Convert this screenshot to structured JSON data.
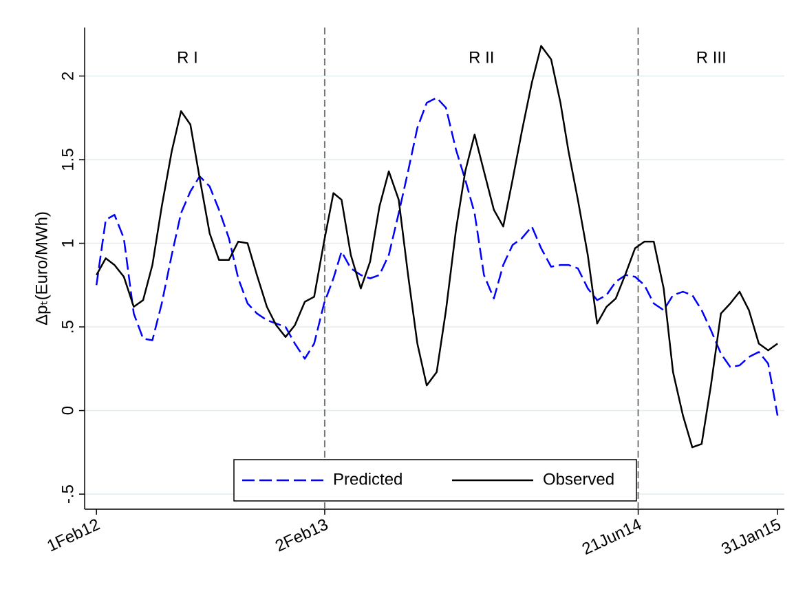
{
  "chart_data": {
    "type": "line",
    "ylabel": "Δpₜ(Euro/MWh)",
    "x": [
      "2012-02-01",
      "2012-02-16",
      "2012-03-01",
      "2012-03-16",
      "2012-04-01",
      "2012-04-16",
      "2012-05-01",
      "2012-05-16",
      "2012-06-01",
      "2012-06-16",
      "2012-07-01",
      "2012-07-16",
      "2012-08-01",
      "2012-08-16",
      "2012-09-01",
      "2012-09-16",
      "2012-10-01",
      "2012-10-16",
      "2012-11-01",
      "2012-11-16",
      "2012-12-01",
      "2012-12-16",
      "2013-01-01",
      "2013-01-16",
      "2013-02-01",
      "2013-02-16",
      "2013-03-01",
      "2013-03-16",
      "2013-04-01",
      "2013-04-16",
      "2013-05-01",
      "2013-05-16",
      "2013-06-01",
      "2013-06-16",
      "2013-07-01",
      "2013-07-16",
      "2013-08-01",
      "2013-08-16",
      "2013-09-01",
      "2013-09-16",
      "2013-10-01",
      "2013-10-16",
      "2013-11-01",
      "2013-11-16",
      "2013-12-01",
      "2013-12-16",
      "2014-01-01",
      "2014-01-16",
      "2014-02-01",
      "2014-02-16",
      "2014-03-01",
      "2014-03-16",
      "2014-04-01",
      "2014-04-16",
      "2014-05-01",
      "2014-05-16",
      "2014-06-01",
      "2014-06-16",
      "2014-07-01",
      "2014-07-16",
      "2014-08-01",
      "2014-08-16",
      "2014-09-01",
      "2014-09-16",
      "2014-10-01",
      "2014-10-16",
      "2014-11-01",
      "2014-11-16",
      "2014-12-01",
      "2014-12-16",
      "2015-01-01",
      "2015-01-16",
      "2015-01-31"
    ],
    "series": [
      {
        "name": "Predicted",
        "color": "#0000ff",
        "dashed": true,
        "values": [
          0.75,
          1.14,
          1.17,
          1.03,
          0.58,
          0.43,
          0.42,
          0.64,
          0.93,
          1.18,
          1.31,
          1.4,
          1.34,
          1.2,
          1.03,
          0.79,
          0.64,
          0.58,
          0.54,
          0.52,
          0.5,
          0.4,
          0.31,
          0.4,
          0.64,
          0.79,
          0.95,
          0.85,
          0.81,
          0.79,
          0.81,
          0.93,
          1.18,
          1.43,
          1.69,
          1.84,
          1.87,
          1.81,
          1.56,
          1.38,
          1.18,
          0.81,
          0.67,
          0.87,
          0.99,
          1.03,
          1.1,
          0.97,
          0.86,
          0.87,
          0.87,
          0.85,
          0.73,
          0.66,
          0.69,
          0.77,
          0.81,
          0.8,
          0.75,
          0.64,
          0.6,
          0.69,
          0.71,
          0.69,
          0.6,
          0.48,
          0.34,
          0.26,
          0.27,
          0.32,
          0.35,
          0.28,
          -0.03
        ]
      },
      {
        "name": "Observed",
        "color": "#000000",
        "dashed": false,
        "values": [
          0.81,
          0.91,
          0.87,
          0.8,
          0.62,
          0.66,
          0.87,
          1.22,
          1.55,
          1.79,
          1.71,
          1.39,
          1.06,
          0.9,
          0.9,
          1.01,
          1.0,
          0.81,
          0.62,
          0.51,
          0.44,
          0.51,
          0.65,
          0.68,
          1.01,
          1.3,
          1.26,
          0.93,
          0.73,
          0.89,
          1.22,
          1.43,
          1.26,
          0.81,
          0.4,
          0.15,
          0.23,
          0.6,
          1.08,
          1.43,
          1.65,
          1.43,
          1.2,
          1.1,
          1.38,
          1.67,
          1.96,
          2.18,
          2.1,
          1.84,
          1.55,
          1.26,
          0.93,
          0.52,
          0.62,
          0.67,
          0.82,
          0.97,
          1.01,
          1.01,
          0.73,
          0.23,
          -0.03,
          -0.22,
          -0.2,
          0.15,
          0.58,
          0.64,
          0.71,
          0.6,
          0.4,
          0.36,
          0.4
        ]
      }
    ],
    "xlim": [
      "2012-01-13",
      "2015-02-11"
    ],
    "xticks": [
      {
        "value": "2012-02-01",
        "label": "1Feb12"
      },
      {
        "value": "2013-02-02",
        "label": "2Feb13"
      },
      {
        "value": "2014-06-21",
        "label": "21Jun14"
      },
      {
        "value": "2015-01-31",
        "label": "31Jan15"
      }
    ],
    "ylim": [
      -0.59,
      2.29
    ],
    "yticks": [
      {
        "value": -0.5,
        "label": "-.5"
      },
      0,
      {
        "value": 0.5,
        "label": ".5"
      },
      1,
      1.5,
      2
    ],
    "grid": true,
    "vlines": [
      "2013-02-02",
      "2014-06-21"
    ],
    "regions": [
      "R I",
      "R II",
      "R III"
    ],
    "legend": "bottom"
  }
}
